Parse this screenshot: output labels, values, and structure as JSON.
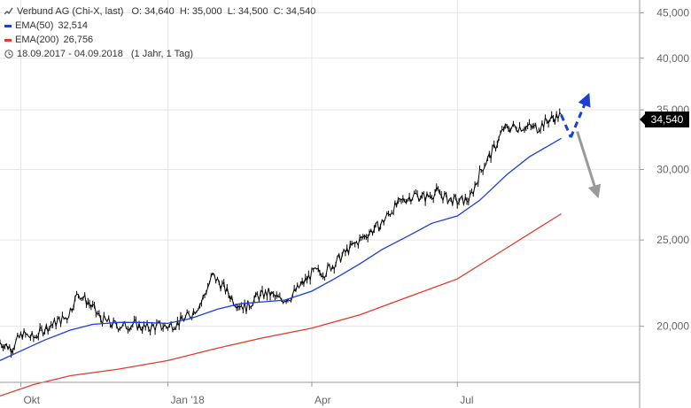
{
  "header": {
    "title": "Verbund AG (Chi-X, last)",
    "ohlc": "O: 34,640  H: 35,000  L: 34,500  C: 34,540",
    "period": "18.09.2017 - 04.09.2018",
    "interval": "(1 Jahr, 1 Tag)"
  },
  "legend": {
    "ema50": {
      "label": "EMA(50)",
      "value": "32,514",
      "color": "#1a3fd9"
    },
    "ema200": {
      "label": "EMA(200)",
      "value": "26,756",
      "color": "#e53a2c"
    }
  },
  "last_price": "34,540",
  "chart_data": {
    "type": "line",
    "log_scale": true,
    "ylim": [
      17.3,
      46.5
    ],
    "x_range": [
      "2017-09-18",
      "2018-10-23"
    ],
    "x_ticks": [
      {
        "date": "2017-10-01",
        "label": "Okt"
      },
      {
        "date": "2018-01-01",
        "label": "Jan '18"
      },
      {
        "date": "2018-04-01",
        "label": "Apr"
      },
      {
        "date": "2018-07-01",
        "label": "Jul"
      }
    ],
    "y_ticks": [
      {
        "value": 20,
        "label": "20,000"
      },
      {
        "value": 25,
        "label": "25,000"
      },
      {
        "value": 30,
        "label": "30,000"
      },
      {
        "value": 35,
        "label": "35,000"
      },
      {
        "value": 40,
        "label": "40,000"
      },
      {
        "value": 45,
        "label": "45,000"
      }
    ],
    "grid": true,
    "series": [
      {
        "name": "Verbund AG (Chi-X, last)",
        "color": "#000000",
        "style": "hlc",
        "points": [
          [
            "2017-09-18",
            19.2
          ],
          [
            "2017-09-25",
            18.9
          ],
          [
            "2017-10-02",
            19.6
          ],
          [
            "2017-10-09",
            19.4
          ],
          [
            "2017-10-16",
            19.9
          ],
          [
            "2017-10-23",
            20.2
          ],
          [
            "2017-10-30",
            20.5
          ],
          [
            "2017-11-06",
            21.8
          ],
          [
            "2017-11-13",
            21.2
          ],
          [
            "2017-11-20",
            20.4
          ],
          [
            "2017-11-27",
            20.1
          ],
          [
            "2017-12-04",
            20.0
          ],
          [
            "2017-12-11",
            20.1
          ],
          [
            "2017-12-18",
            19.9
          ],
          [
            "2017-12-25",
            20.0
          ],
          [
            "2018-01-01",
            20.0
          ],
          [
            "2018-01-08",
            20.2
          ],
          [
            "2018-01-15",
            20.6
          ],
          [
            "2018-01-22",
            21.3
          ],
          [
            "2018-01-29",
            22.8
          ],
          [
            "2018-02-05",
            22.1
          ],
          [
            "2018-02-12",
            21.3
          ],
          [
            "2018-02-19",
            21.0
          ],
          [
            "2018-02-26",
            21.6
          ],
          [
            "2018-03-05",
            21.8
          ],
          [
            "2018-03-12",
            21.4
          ],
          [
            "2018-03-19",
            21.6
          ],
          [
            "2018-03-26",
            22.3
          ],
          [
            "2018-04-02",
            23.0
          ],
          [
            "2018-04-09",
            23.0
          ],
          [
            "2018-04-16",
            23.6
          ],
          [
            "2018-04-23",
            24.3
          ],
          [
            "2018-04-30",
            24.9
          ],
          [
            "2018-05-07",
            25.5
          ],
          [
            "2018-05-14",
            26.0
          ],
          [
            "2018-05-21",
            27.0
          ],
          [
            "2018-05-28",
            27.7
          ],
          [
            "2018-06-04",
            28.1
          ],
          [
            "2018-06-11",
            27.9
          ],
          [
            "2018-06-18",
            28.3
          ],
          [
            "2018-06-25",
            27.8
          ],
          [
            "2018-07-02",
            27.6
          ],
          [
            "2018-07-09",
            27.8
          ],
          [
            "2018-07-16",
            30.0
          ],
          [
            "2018-07-23",
            31.4
          ],
          [
            "2018-07-30",
            33.3
          ],
          [
            "2018-08-06",
            33.5
          ],
          [
            "2018-08-13",
            33.5
          ],
          [
            "2018-08-20",
            33.4
          ],
          [
            "2018-08-27",
            34.1
          ],
          [
            "2018-09-04",
            34.54
          ]
        ]
      },
      {
        "name": "EMA(50)",
        "color": "#1a3fd9",
        "points": [
          [
            "2017-09-18",
            18.3
          ],
          [
            "2017-10-02",
            18.8
          ],
          [
            "2017-10-16",
            19.3
          ],
          [
            "2017-11-01",
            19.8
          ],
          [
            "2017-11-15",
            20.1
          ],
          [
            "2017-12-01",
            20.2
          ],
          [
            "2017-12-15",
            20.2
          ],
          [
            "2018-01-01",
            20.15
          ],
          [
            "2018-01-15",
            20.4
          ],
          [
            "2018-02-01",
            20.9
          ],
          [
            "2018-02-15",
            21.2
          ],
          [
            "2018-03-01",
            21.3
          ],
          [
            "2018-03-15",
            21.4
          ],
          [
            "2018-04-01",
            21.9
          ],
          [
            "2018-04-15",
            22.6
          ],
          [
            "2018-05-01",
            23.5
          ],
          [
            "2018-05-15",
            24.4
          ],
          [
            "2018-06-01",
            25.3
          ],
          [
            "2018-06-15",
            26.1
          ],
          [
            "2018-07-01",
            26.6
          ],
          [
            "2018-07-15",
            27.7
          ],
          [
            "2018-08-01",
            29.6
          ],
          [
            "2018-08-15",
            31.0
          ],
          [
            "2018-09-04",
            32.514
          ]
        ]
      },
      {
        "name": "EMA(200)",
        "color": "#e53a2c",
        "points": [
          [
            "2017-09-18",
            16.7
          ],
          [
            "2017-10-09",
            17.2
          ],
          [
            "2017-11-01",
            17.6
          ],
          [
            "2017-12-01",
            17.9
          ],
          [
            "2018-01-01",
            18.3
          ],
          [
            "2018-02-01",
            18.9
          ],
          [
            "2018-03-01",
            19.4
          ],
          [
            "2018-04-01",
            19.9
          ],
          [
            "2018-05-01",
            20.6
          ],
          [
            "2018-06-01",
            21.6
          ],
          [
            "2018-07-01",
            22.6
          ],
          [
            "2018-08-01",
            24.5
          ],
          [
            "2018-09-04",
            26.756
          ]
        ]
      }
    ],
    "annotations": [
      {
        "name": "scenario-dip",
        "color": "#1a3fd9",
        "style": "dashed",
        "from": [
          "2018-09-04",
          34.54
        ],
        "to": [
          "2018-09-10",
          32.6
        ]
      },
      {
        "name": "scenario-up",
        "color": "#1a3fd9",
        "style": "dashed-arrow",
        "from": [
          "2018-09-10",
          32.6
        ],
        "to": [
          "2018-09-20",
          36.0
        ]
      },
      {
        "name": "scenario-down",
        "color": "#999999",
        "style": "arrow",
        "from": [
          "2018-09-14",
          33.1
        ],
        "to": [
          "2018-09-26",
          28.3
        ]
      }
    ]
  }
}
